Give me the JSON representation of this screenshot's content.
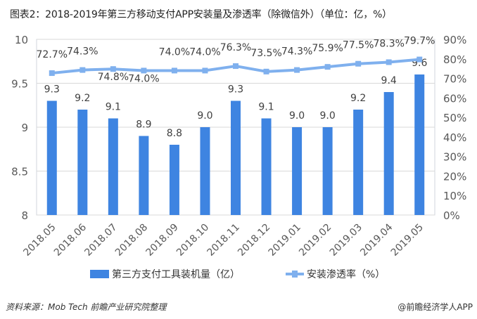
{
  "title": "图表2：2018-2019年第三方移动支付APP安装量及渗透率（除微信外）（单位：亿，%）",
  "chart_data": {
    "type": "bar+line",
    "title": "图表2：2018-2019年第三方移动支付APP安装量及渗透率（除微信外）（单位：亿，%）",
    "categories": [
      "2018.05",
      "2018.06",
      "2018.07",
      "2018.08",
      "2018.09",
      "2018.10",
      "2018.11",
      "2018.12",
      "2019.01",
      "2019.02",
      "2019.03",
      "2019.04",
      "2019.05"
    ],
    "series": [
      {
        "name": "第三方支付工具装机量（亿）",
        "type": "bar",
        "axis": "left",
        "color": "#3E84E1",
        "values": [
          9.3,
          9.2,
          9.1,
          8.9,
          8.8,
          9.0,
          9.3,
          9.1,
          9.0,
          9.0,
          9.2,
          9.4,
          9.6
        ],
        "labels": [
          "9.3",
          "9.2",
          "9.1",
          "8.9",
          "8.8",
          "9.0",
          "9.3",
          "9.1",
          "9.0",
          "9.0",
          "9.2",
          "9.4",
          "9.6"
        ]
      },
      {
        "name": "安装渗透率（%）",
        "type": "line",
        "axis": "right",
        "color": "#7FB0EE",
        "values": [
          72.7,
          74.3,
          74.8,
          74.0,
          74.0,
          74.0,
          76.3,
          73.5,
          74.3,
          75.9,
          77.5,
          78.3,
          79.7
        ],
        "labels": [
          "72.7%",
          "74.3%",
          "74.8%",
          "74.0%",
          "74.0%",
          "74.0%",
          "76.3%",
          "73.5%",
          "74.3%",
          "75.9%",
          "77.5%",
          "78.3%",
          "79.7%"
        ]
      }
    ],
    "y_left": {
      "min": 8,
      "max": 10,
      "ticks": [
        8,
        8.5,
        9,
        9.5,
        10
      ],
      "tick_labels": [
        "8",
        "8.5",
        "9",
        "9.5",
        "10"
      ]
    },
    "y_right": {
      "min": 0,
      "max": 90,
      "ticks": [
        0,
        10,
        20,
        30,
        40,
        50,
        60,
        70,
        80,
        90
      ],
      "tick_labels": [
        "0%",
        "10%",
        "20%",
        "30%",
        "40%",
        "50%",
        "60%",
        "70%",
        "80%",
        "90%"
      ]
    },
    "grid": true,
    "legend": "bottom"
  },
  "legend": {
    "bar_label": "第三方支付工具装机量（亿）",
    "line_label": "安装渗透率（%）"
  },
  "footer": {
    "source": "资料来源：Mob Tech 前瞻产业研究院整理",
    "credit": "@前瞻经济学人APP"
  }
}
